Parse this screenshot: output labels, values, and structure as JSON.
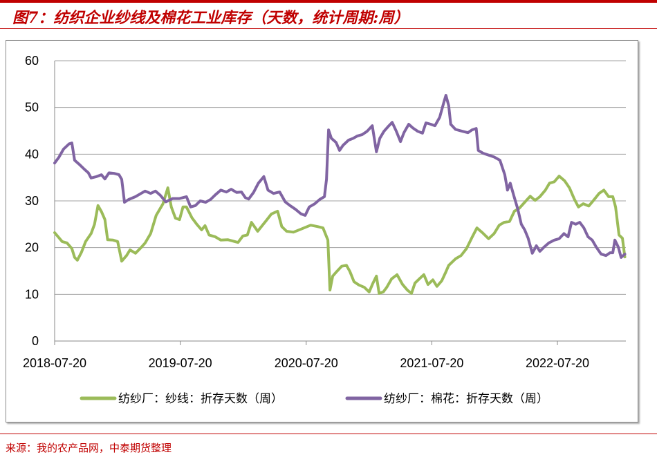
{
  "title": "图7：纺织企业纱线及棉花工业库存（天数，统计周期:周）",
  "source": "来源：我的农产品网，中泰期货整理",
  "chart_data": {
    "type": "line",
    "title": "",
    "xlabel": "",
    "ylabel": "",
    "ylim": [
      0,
      60
    ],
    "yticks": [
      "0",
      "10",
      "20",
      "30",
      "40",
      "50",
      "60"
    ],
    "xticks": [
      "2018-07-20",
      "2019-07-20",
      "2020-07-20",
      "2021-07-20",
      "2022-07-20"
    ],
    "grid": "horizontal",
    "legend": "bottom",
    "series": [
      {
        "name": "纺纱厂：纱线：折存天数（周）",
        "color": "#9bbb59",
        "points": [
          [
            "2018-07-20",
            23.2
          ],
          [
            "2018-08-11",
            21.3
          ],
          [
            "2018-08-25",
            21.0
          ],
          [
            "2018-09-08",
            19.8
          ],
          [
            "2018-09-16",
            17.9
          ],
          [
            "2018-09-24",
            17.3
          ],
          [
            "2018-10-06",
            19.0
          ],
          [
            "2018-10-18",
            21.3
          ],
          [
            "2018-11-03",
            23.0
          ],
          [
            "2018-11-13",
            25.0
          ],
          [
            "2018-11-23",
            29.0
          ],
          [
            "2018-12-03",
            27.7
          ],
          [
            "2018-12-13",
            26.0
          ],
          [
            "2018-12-21",
            21.7
          ],
          [
            "2019-01-06",
            21.6
          ],
          [
            "2019-01-19",
            21.3
          ],
          [
            "2019-01-31",
            17.1
          ],
          [
            "2019-02-14",
            18.3
          ],
          [
            "2019-02-24",
            19.5
          ],
          [
            "2019-03-12",
            18.8
          ],
          [
            "2019-03-28",
            20.0
          ],
          [
            "2019-04-09",
            21.0
          ],
          [
            "2019-04-25",
            23.0
          ],
          [
            "2019-05-11",
            26.9
          ],
          [
            "2019-05-31",
            29.4
          ],
          [
            "2019-06-14",
            32.8
          ],
          [
            "2019-06-24",
            28.7
          ],
          [
            "2019-07-06",
            26.3
          ],
          [
            "2019-07-18",
            26.0
          ],
          [
            "2019-07-28",
            28.7
          ],
          [
            "2019-08-07",
            28.7
          ],
          [
            "2019-08-23",
            26.4
          ],
          [
            "2019-09-06",
            25.0
          ],
          [
            "2019-09-20",
            23.8
          ],
          [
            "2019-09-30",
            24.7
          ],
          [
            "2019-10-12",
            22.7
          ],
          [
            "2019-10-30",
            22.3
          ],
          [
            "2019-11-15",
            21.6
          ],
          [
            "2019-12-05",
            21.7
          ],
          [
            "2020-01-04",
            21.1
          ],
          [
            "2020-01-18",
            22.5
          ],
          [
            "2020-01-31",
            22.7
          ],
          [
            "2020-02-12",
            25.4
          ],
          [
            "2020-03-01",
            23.5
          ],
          [
            "2020-03-25",
            25.7
          ],
          [
            "2020-04-10",
            27.2
          ],
          [
            "2020-04-28",
            27.8
          ],
          [
            "2020-05-10",
            24.5
          ],
          [
            "2020-05-24",
            23.5
          ],
          [
            "2020-06-13",
            23.3
          ],
          [
            "2020-07-03",
            23.9
          ],
          [
            "2020-08-02",
            24.8
          ],
          [
            "2020-08-22",
            24.5
          ],
          [
            "2020-09-07",
            24.2
          ],
          [
            "2020-09-21",
            21.6
          ],
          [
            "2020-09-27",
            10.9
          ],
          [
            "2020-10-05",
            13.9
          ],
          [
            "2020-10-17",
            14.9
          ],
          [
            "2020-10-31",
            16.0
          ],
          [
            "2020-11-14",
            16.2
          ],
          [
            "2020-11-24",
            14.9
          ],
          [
            "2020-12-06",
            12.7
          ],
          [
            "2020-12-20",
            12.0
          ],
          [
            "2021-01-05",
            11.5
          ],
          [
            "2021-01-19",
            10.5
          ],
          [
            "2021-01-30",
            12.4
          ],
          [
            "2021-02-09",
            13.9
          ],
          [
            "2021-02-17",
            10.2
          ],
          [
            "2021-03-01",
            10.5
          ],
          [
            "2021-03-11",
            11.5
          ],
          [
            "2021-03-25",
            13.3
          ],
          [
            "2021-04-10",
            14.2
          ],
          [
            "2021-04-26",
            12.1
          ],
          [
            "2021-05-10",
            10.9
          ],
          [
            "2021-05-22",
            10.2
          ],
          [
            "2021-06-01",
            12.4
          ],
          [
            "2021-06-15",
            13.4
          ],
          [
            "2021-06-27",
            14.2
          ],
          [
            "2021-07-09",
            12.1
          ],
          [
            "2021-07-23",
            13.1
          ],
          [
            "2021-08-04",
            11.7
          ],
          [
            "2021-08-18",
            12.9
          ],
          [
            "2021-08-28",
            14.5
          ],
          [
            "2021-09-07",
            16.2
          ],
          [
            "2021-09-27",
            17.6
          ],
          [
            "2021-10-13",
            18.3
          ],
          [
            "2021-10-29",
            19.8
          ],
          [
            "2021-11-14",
            22.2
          ],
          [
            "2021-11-28",
            24.2
          ],
          [
            "2021-12-14",
            23.2
          ],
          [
            "2022-01-01",
            21.9
          ],
          [
            "2022-01-17",
            23.0
          ],
          [
            "2022-02-01",
            24.8
          ],
          [
            "2022-02-15",
            25.4
          ],
          [
            "2022-03-03",
            25.6
          ],
          [
            "2022-03-17",
            27.8
          ],
          [
            "2022-03-31",
            28.4
          ],
          [
            "2022-04-16",
            29.7
          ],
          [
            "2022-05-02",
            31.0
          ],
          [
            "2022-05-16",
            30.1
          ],
          [
            "2022-05-30",
            30.9
          ],
          [
            "2022-06-15",
            32.3
          ],
          [
            "2022-06-27",
            33.8
          ],
          [
            "2022-07-11",
            34.1
          ],
          [
            "2022-07-25",
            35.3
          ],
          [
            "2022-08-10",
            34.3
          ],
          [
            "2022-08-24",
            32.8
          ],
          [
            "2022-09-07",
            30.4
          ],
          [
            "2022-09-19",
            28.7
          ],
          [
            "2022-10-03",
            29.4
          ],
          [
            "2022-10-19",
            28.9
          ],
          [
            "2022-11-02",
            30.1
          ],
          [
            "2022-11-18",
            31.6
          ],
          [
            "2022-12-02",
            32.3
          ],
          [
            "2022-12-16",
            30.9
          ],
          [
            "2022-12-28",
            30.9
          ],
          [
            "2023-01-05",
            28.7
          ],
          [
            "2023-01-15",
            22.7
          ],
          [
            "2023-01-25",
            22.0
          ],
          [
            "2023-02-01",
            18.0
          ]
        ]
      },
      {
        "name": "纺纱厂：棉花：折存天数（周）",
        "color": "#8064a2",
        "points": [
          [
            "2018-07-20",
            38.1
          ],
          [
            "2018-08-01",
            39.3
          ],
          [
            "2018-08-15",
            41.1
          ],
          [
            "2018-08-31",
            42.2
          ],
          [
            "2018-09-08",
            42.4
          ],
          [
            "2018-09-16",
            38.7
          ],
          [
            "2018-09-30",
            37.8
          ],
          [
            "2018-10-14",
            36.8
          ],
          [
            "2018-10-26",
            36.0
          ],
          [
            "2018-11-03",
            34.9
          ],
          [
            "2018-11-19",
            35.2
          ],
          [
            "2018-12-03",
            35.6
          ],
          [
            "2018-12-13",
            34.7
          ],
          [
            "2018-12-25",
            36.0
          ],
          [
            "2019-01-08",
            35.9
          ],
          [
            "2019-01-23",
            35.6
          ],
          [
            "2019-01-31",
            34.6
          ],
          [
            "2019-02-08",
            29.7
          ],
          [
            "2019-02-20",
            30.3
          ],
          [
            "2019-03-12",
            30.9
          ],
          [
            "2019-03-28",
            31.6
          ],
          [
            "2019-04-09",
            32.1
          ],
          [
            "2019-04-25",
            31.6
          ],
          [
            "2019-05-09",
            32.1
          ],
          [
            "2019-05-23",
            31.2
          ],
          [
            "2019-06-08",
            29.8
          ],
          [
            "2019-06-28",
            30.5
          ],
          [
            "2019-07-18",
            30.5
          ],
          [
            "2019-08-07",
            30.9
          ],
          [
            "2019-08-19",
            28.7
          ],
          [
            "2019-09-02",
            29.0
          ],
          [
            "2019-09-16",
            30.0
          ],
          [
            "2019-10-02",
            29.7
          ],
          [
            "2019-10-16",
            30.3
          ],
          [
            "2019-10-30",
            31.3
          ],
          [
            "2019-11-15",
            32.3
          ],
          [
            "2019-12-01",
            31.9
          ],
          [
            "2019-12-15",
            32.5
          ],
          [
            "2019-12-31",
            31.8
          ],
          [
            "2020-01-14",
            31.9
          ],
          [
            "2020-01-25",
            30.7
          ],
          [
            "2020-02-04",
            30.4
          ],
          [
            "2020-02-18",
            31.8
          ],
          [
            "2020-03-03",
            33.8
          ],
          [
            "2020-03-19",
            35.2
          ],
          [
            "2020-03-31",
            32.3
          ],
          [
            "2020-04-16",
            31.6
          ],
          [
            "2020-05-04",
            31.9
          ],
          [
            "2020-05-20",
            29.8
          ],
          [
            "2020-06-03",
            29.0
          ],
          [
            "2020-06-19",
            28.2
          ],
          [
            "2020-07-05",
            27.2
          ],
          [
            "2020-07-17",
            26.9
          ],
          [
            "2020-07-29",
            28.7
          ],
          [
            "2020-08-14",
            29.4
          ],
          [
            "2020-08-28",
            30.3
          ],
          [
            "2020-09-11",
            30.9
          ],
          [
            "2020-09-17",
            34.6
          ],
          [
            "2020-09-23",
            45.2
          ],
          [
            "2020-10-01",
            43.4
          ],
          [
            "2020-10-15",
            42.5
          ],
          [
            "2020-10-25",
            40.8
          ],
          [
            "2020-11-04",
            41.9
          ],
          [
            "2020-11-20",
            43.0
          ],
          [
            "2020-12-04",
            43.4
          ],
          [
            "2020-12-16",
            43.9
          ],
          [
            "2020-12-30",
            44.2
          ],
          [
            "2021-01-13",
            44.9
          ],
          [
            "2021-01-28",
            46.1
          ],
          [
            "2021-02-09",
            40.5
          ],
          [
            "2021-02-19",
            43.4
          ],
          [
            "2021-03-03",
            44.9
          ],
          [
            "2021-03-15",
            45.9
          ],
          [
            "2021-03-27",
            46.8
          ],
          [
            "2021-04-08",
            44.9
          ],
          [
            "2021-04-20",
            42.7
          ],
          [
            "2021-04-30",
            44.6
          ],
          [
            "2021-05-14",
            46.4
          ],
          [
            "2021-05-26",
            45.6
          ],
          [
            "2021-06-09",
            44.9
          ],
          [
            "2021-06-23",
            44.5
          ],
          [
            "2021-07-03",
            46.7
          ],
          [
            "2021-07-17",
            46.4
          ],
          [
            "2021-07-29",
            46.1
          ],
          [
            "2021-08-12",
            47.9
          ],
          [
            "2021-08-24",
            51.1
          ],
          [
            "2021-08-30",
            52.6
          ],
          [
            "2021-09-07",
            50.4
          ],
          [
            "2021-09-13",
            46.4
          ],
          [
            "2021-09-27",
            45.3
          ],
          [
            "2021-10-17",
            44.9
          ],
          [
            "2021-11-02",
            44.6
          ],
          [
            "2021-11-14",
            45.2
          ],
          [
            "2021-11-26",
            45.5
          ],
          [
            "2021-12-02",
            40.8
          ],
          [
            "2021-12-16",
            40.2
          ],
          [
            "2022-01-01",
            39.8
          ],
          [
            "2022-01-17",
            39.4
          ],
          [
            "2022-02-03",
            38.7
          ],
          [
            "2022-02-17",
            35.6
          ],
          [
            "2022-02-25",
            32.3
          ],
          [
            "2022-03-05",
            33.8
          ],
          [
            "2022-03-15",
            31.2
          ],
          [
            "2022-03-27",
            28.2
          ],
          [
            "2022-04-06",
            25.0
          ],
          [
            "2022-04-16",
            23.8
          ],
          [
            "2022-04-26",
            22.0
          ],
          [
            "2022-05-08",
            18.8
          ],
          [
            "2022-05-20",
            20.4
          ],
          [
            "2022-05-30",
            19.2
          ],
          [
            "2022-06-11",
            20.1
          ],
          [
            "2022-06-25",
            21.0
          ],
          [
            "2022-07-11",
            21.6
          ],
          [
            "2022-07-25",
            21.9
          ],
          [
            "2022-08-08",
            23.0
          ],
          [
            "2022-08-20",
            22.3
          ],
          [
            "2022-08-30",
            25.4
          ],
          [
            "2022-09-11",
            25.0
          ],
          [
            "2022-09-23",
            25.4
          ],
          [
            "2022-10-05",
            24.2
          ],
          [
            "2022-10-17",
            22.3
          ],
          [
            "2022-10-29",
            21.6
          ],
          [
            "2022-11-10",
            20.1
          ],
          [
            "2022-11-24",
            18.6
          ],
          [
            "2022-12-08",
            18.3
          ],
          [
            "2022-12-20",
            18.9
          ],
          [
            "2022-12-28",
            18.9
          ],
          [
            "2023-01-03",
            21.6
          ],
          [
            "2023-01-13",
            20.1
          ],
          [
            "2023-01-21",
            17.9
          ],
          [
            "2023-02-01",
            18.6
          ]
        ]
      }
    ]
  }
}
